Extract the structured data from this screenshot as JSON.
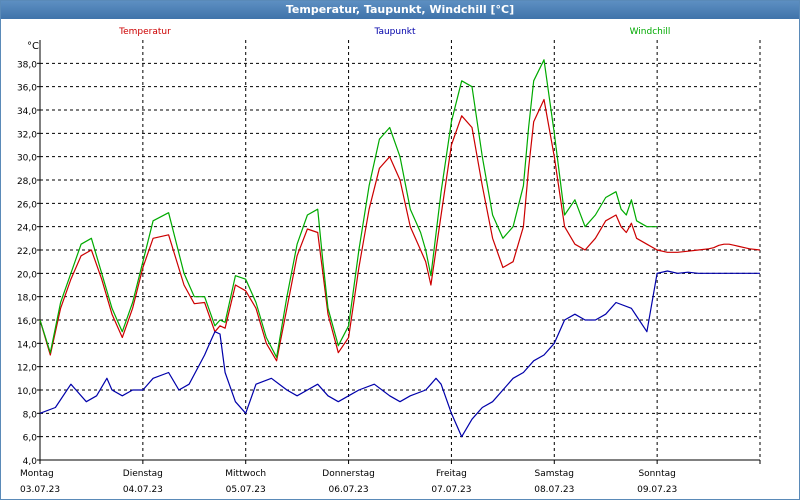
{
  "window": {
    "title": "Temperatur, Taupunkt, Windchill [°C]"
  },
  "chart_data": {
    "type": "line",
    "title": "Temperatur, Taupunkt, Windchill [°C]",
    "ylabel": "°C",
    "ylim": [
      4,
      40
    ],
    "xlim": [
      0,
      7
    ],
    "grid": true,
    "legend_position": "top",
    "yticks": [
      "4,0",
      "6,0",
      "8,0",
      "10,0",
      "12,0",
      "14,0",
      "16,0",
      "18,0",
      "20,0",
      "22,0",
      "24,0",
      "26,0",
      "28,0",
      "30,0",
      "32,0",
      "34,0",
      "36,0",
      "38,0"
    ],
    "days": [
      {
        "name": "Montag",
        "date": "03.07.23"
      },
      {
        "name": "Dienstag",
        "date": "04.07.23"
      },
      {
        "name": "Mittwoch",
        "date": "05.07.23"
      },
      {
        "name": "Donnerstag",
        "date": "06.07.23"
      },
      {
        "name": "Freitag",
        "date": "07.07.23"
      },
      {
        "name": "Samstag",
        "date": "08.07.23"
      },
      {
        "name": "Sonntag",
        "date": "09.07.23"
      }
    ],
    "series": [
      {
        "name": "Temperatur",
        "color": "#cc0000",
        "x": [
          0,
          0.1,
          0.2,
          0.3,
          0.4,
          0.5,
          0.6,
          0.7,
          0.75,
          0.8,
          0.9,
          1.0,
          1.1,
          1.25,
          1.4,
          1.5,
          1.6,
          1.7,
          1.75,
          1.8,
          1.9,
          2.0,
          2.1,
          2.2,
          2.3,
          2.4,
          2.5,
          2.6,
          2.7,
          2.75,
          2.8,
          2.9,
          3.0,
          3.1,
          3.2,
          3.3,
          3.4,
          3.5,
          3.6,
          3.7,
          3.75,
          3.8,
          3.9,
          4.0,
          4.1,
          4.2,
          4.3,
          4.4,
          4.5,
          4.6,
          4.7,
          4.75,
          4.8,
          4.9,
          5.0,
          5.1,
          5.2,
          5.3,
          5.4,
          5.5,
          5.6,
          5.65,
          5.7,
          5.75,
          5.8,
          5.9,
          6.0,
          6.1,
          6.2,
          6.3,
          6.4,
          6.5,
          6.55,
          6.6,
          6.65,
          6.7,
          6.75,
          6.8,
          6.85,
          6.9,
          7.0
        ],
        "y": [
          16.0,
          13.0,
          17.0,
          19.5,
          21.5,
          22.0,
          19.5,
          16.5,
          15.5,
          14.5,
          17.0,
          20.5,
          23.0,
          23.3,
          19.0,
          17.4,
          17.5,
          15.0,
          15.5,
          15.3,
          19.0,
          18.5,
          17.0,
          14.0,
          12.5,
          17.0,
          21.5,
          23.8,
          23.5,
          20.0,
          16.5,
          13.2,
          14.5,
          20.5,
          25.5,
          29.0,
          30.0,
          28.0,
          24.0,
          22.0,
          21.0,
          19.0,
          25.0,
          31.0,
          33.5,
          32.5,
          27.5,
          23.0,
          20.5,
          21.0,
          24.0,
          29.0,
          33.0,
          34.9,
          30.0,
          24.0,
          22.5,
          22.0,
          23.0,
          24.5,
          25.0,
          24.0,
          23.5,
          24.3,
          23.0,
          22.5,
          22.0,
          21.8,
          21.8,
          21.9,
          22.0,
          22.1,
          22.2,
          22.4,
          22.5,
          22.5,
          22.4,
          22.3,
          22.2,
          22.1,
          22.0
        ]
      },
      {
        "name": "Taupunkt",
        "color": "#0000aa",
        "x": [
          0,
          0.15,
          0.3,
          0.35,
          0.45,
          0.55,
          0.65,
          0.7,
          0.8,
          0.9,
          1.0,
          1.1,
          1.25,
          1.35,
          1.45,
          1.6,
          1.65,
          1.7,
          1.75,
          1.8,
          1.9,
          2.0,
          2.1,
          2.25,
          2.4,
          2.5,
          2.6,
          2.7,
          2.8,
          2.9,
          3.0,
          3.1,
          3.25,
          3.4,
          3.5,
          3.6,
          3.75,
          3.8,
          3.85,
          3.9,
          4.0,
          4.1,
          4.2,
          4.3,
          4.4,
          4.5,
          4.6,
          4.7,
          4.8,
          4.9,
          5.0,
          5.1,
          5.2,
          5.3,
          5.4,
          5.5,
          5.6,
          5.75,
          5.9,
          6.0,
          6.1,
          6.2,
          6.3,
          6.4,
          6.5,
          6.6,
          6.7,
          6.8,
          6.9,
          7.0
        ],
        "y": [
          8.0,
          8.5,
          10.5,
          10.0,
          9.0,
          9.5,
          11.0,
          10.0,
          9.5,
          10.0,
          10.0,
          11.0,
          11.5,
          10.0,
          10.5,
          13.0,
          14.0,
          15.0,
          14.8,
          11.5,
          9.0,
          8.0,
          10.5,
          11.0,
          10.0,
          9.5,
          10.0,
          10.5,
          9.5,
          9.0,
          9.5,
          10.0,
          10.5,
          9.5,
          9.0,
          9.5,
          10.0,
          10.5,
          11.0,
          10.5,
          8.0,
          6.0,
          7.5,
          8.5,
          9.0,
          10.0,
          11.0,
          11.5,
          12.5,
          13.0,
          14.0,
          16.0,
          16.5,
          16.0,
          16.0,
          16.5,
          17.5,
          17.0,
          15.0,
          20.0,
          20.2,
          20.0,
          20.1,
          20.0,
          20.0,
          20.0,
          20.0,
          20.0,
          20.0,
          20.0
        ]
      },
      {
        "name": "Windchill",
        "color": "#00aa00",
        "x": [
          0,
          0.1,
          0.2,
          0.3,
          0.4,
          0.5,
          0.6,
          0.7,
          0.75,
          0.8,
          0.9,
          1.0,
          1.1,
          1.25,
          1.4,
          1.5,
          1.6,
          1.7,
          1.75,
          1.8,
          1.9,
          2.0,
          2.1,
          2.2,
          2.3,
          2.4,
          2.5,
          2.6,
          2.7,
          2.75,
          2.8,
          2.9,
          3.0,
          3.1,
          3.2,
          3.3,
          3.4,
          3.5,
          3.6,
          3.7,
          3.75,
          3.8,
          3.9,
          4.0,
          4.1,
          4.2,
          4.3,
          4.4,
          4.5,
          4.6,
          4.7,
          4.75,
          4.8,
          4.9,
          5.0,
          5.1,
          5.2,
          5.3,
          5.4,
          5.5,
          5.6,
          5.65,
          5.7,
          5.75,
          5.8,
          5.9,
          6.0
        ],
        "y": [
          16.0,
          13.2,
          17.5,
          20.0,
          22.5,
          23.0,
          20.0,
          17.0,
          16.0,
          15.0,
          17.5,
          21.0,
          24.5,
          25.2,
          20.0,
          18.0,
          18.0,
          15.5,
          16.0,
          15.8,
          19.8,
          19.5,
          17.5,
          14.5,
          12.8,
          18.0,
          22.5,
          25.0,
          25.5,
          21.0,
          17.0,
          13.8,
          15.5,
          22.0,
          27.5,
          31.5,
          32.5,
          30.0,
          25.5,
          23.5,
          22.0,
          19.8,
          27.0,
          33.0,
          36.5,
          36.0,
          30.0,
          25.0,
          23.0,
          24.0,
          27.5,
          32.5,
          36.5,
          38.3,
          32.0,
          25.0,
          26.3,
          24.0,
          25.0,
          26.5,
          27.0,
          25.5,
          25.0,
          26.3,
          24.5,
          24.0,
          24.0
        ]
      }
    ]
  }
}
